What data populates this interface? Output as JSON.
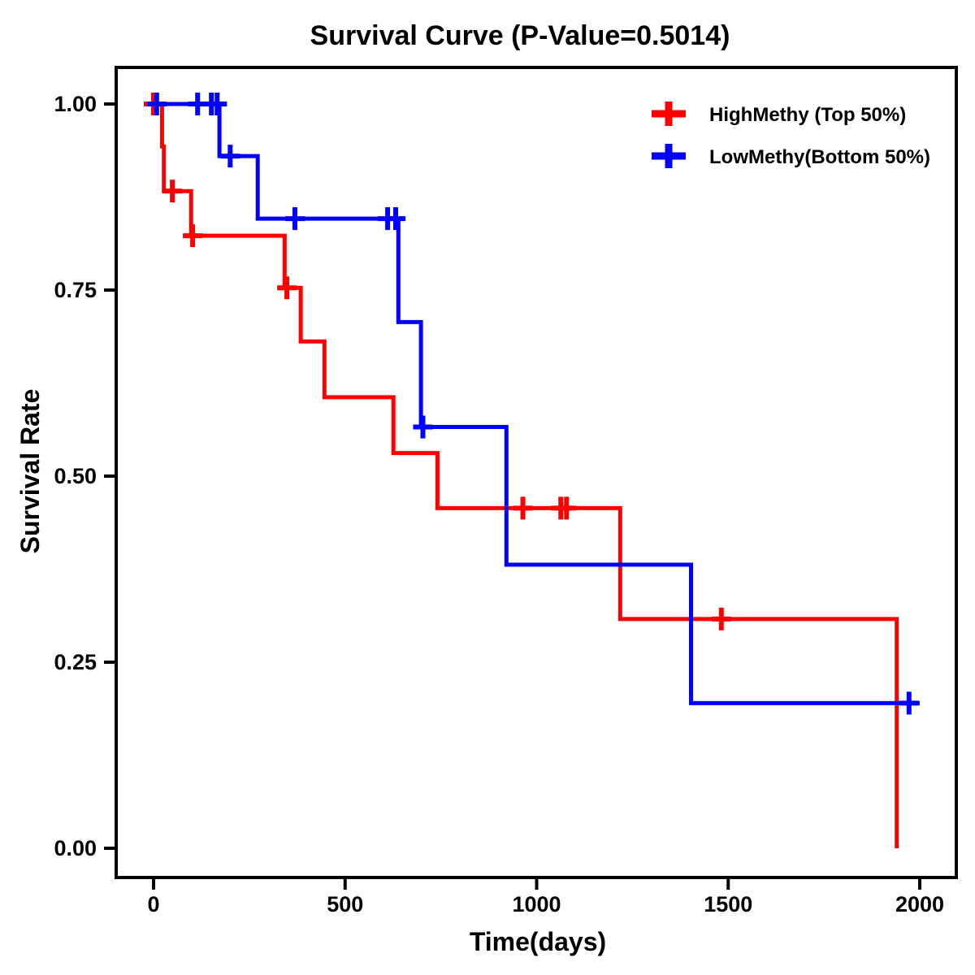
{
  "chart_data": {
    "type": "line",
    "subtype": "kaplan-meier-step-survival",
    "title": "Survival Curve (P-Value=0.5014)",
    "p_value": 0.5014,
    "xlabel": "Time(days)",
    "ylabel": "Survival Rate",
    "grid": false,
    "background_color": "#FFFFFF",
    "axis_color": "#000000",
    "legend_position": "top-right-inside",
    "xlim": [
      -98,
      2095
    ],
    "ylim": [
      -0.04,
      1.05
    ],
    "xticks": [
      {
        "value": 0,
        "label": "0"
      },
      {
        "value": 500,
        "label": "500"
      },
      {
        "value": 1000,
        "label": "1000"
      },
      {
        "value": 1500,
        "label": "1500"
      },
      {
        "value": 2000,
        "label": "2000"
      }
    ],
    "yticks": [
      {
        "value": 0.0,
        "label": "0.00"
      },
      {
        "value": 0.25,
        "label": "0.25"
      },
      {
        "value": 0.5,
        "label": "0.50"
      },
      {
        "value": 0.75,
        "label": "0.75"
      },
      {
        "value": 1.0,
        "label": "1.00"
      }
    ],
    "series": [
      {
        "name": "HighMethy (Top 50%)",
        "color": "#FF0000",
        "marker": "plus",
        "steps": [
          [
            0,
            1.0
          ],
          [
            22,
            1.0
          ],
          [
            22,
            0.943
          ],
          [
            27,
            0.943
          ],
          [
            27,
            0.883
          ],
          [
            98,
            0.883
          ],
          [
            98,
            0.823
          ],
          [
            342,
            0.823
          ],
          [
            342,
            0.753
          ],
          [
            384,
            0.753
          ],
          [
            384,
            0.681
          ],
          [
            446,
            0.681
          ],
          [
            446,
            0.606
          ],
          [
            626,
            0.606
          ],
          [
            626,
            0.531
          ],
          [
            741,
            0.531
          ],
          [
            741,
            0.457
          ],
          [
            1218,
            0.457
          ],
          [
            1218,
            0.308
          ],
          [
            1940,
            0.308
          ],
          [
            1940,
            0.0
          ]
        ],
        "censor_marks": [
          [
            0,
            1.0
          ],
          [
            49,
            0.883
          ],
          [
            102,
            0.823
          ],
          [
            348,
            0.753
          ],
          [
            964,
            0.457
          ],
          [
            1063,
            0.457
          ],
          [
            1078,
            0.457
          ],
          [
            1482,
            0.308
          ]
        ]
      },
      {
        "name": "LowMethy(Bottom 50%)",
        "color": "#0000FF",
        "marker": "plus",
        "steps": [
          [
            0,
            1.0
          ],
          [
            172,
            1.0
          ],
          [
            172,
            0.93
          ],
          [
            272,
            0.93
          ],
          [
            272,
            0.846
          ],
          [
            639,
            0.846
          ],
          [
            639,
            0.707
          ],
          [
            698,
            0.707
          ],
          [
            698,
            0.566
          ],
          [
            921,
            0.566
          ],
          [
            921,
            0.381
          ],
          [
            1403,
            0.381
          ],
          [
            1403,
            0.195
          ],
          [
            2000,
            0.195
          ]
        ],
        "censor_marks": [
          [
            8,
            1.0
          ],
          [
            115,
            1.0
          ],
          [
            151,
            1.0
          ],
          [
            166,
            1.0
          ],
          [
            200,
            0.93
          ],
          [
            369,
            0.846
          ],
          [
            611,
            0.846
          ],
          [
            632,
            0.846
          ],
          [
            703,
            0.566
          ],
          [
            1972,
            0.195
          ]
        ]
      }
    ]
  }
}
